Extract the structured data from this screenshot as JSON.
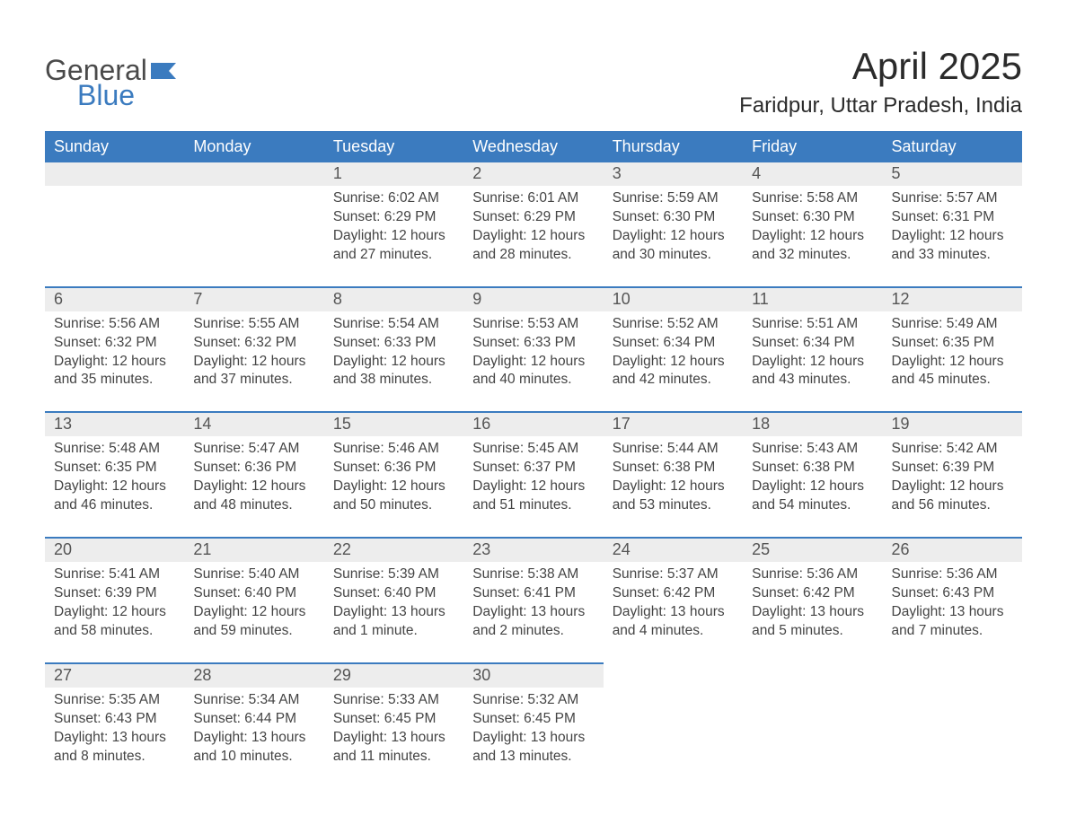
{
  "logo": {
    "word1": "General",
    "word2": "Blue"
  },
  "title": "April 2025",
  "location": "Faridpur, Uttar Pradesh, India",
  "colors": {
    "header_bg": "#3b7bbf",
    "header_text": "#ffffff",
    "daynum_bg": "#ededed",
    "daynum_text": "#555555",
    "body_text": "#444444",
    "rule": "#3b7bbf",
    "page_bg": "#ffffff",
    "logo_gray": "#4a4a4a",
    "logo_blue": "#3b7bbf"
  },
  "typography": {
    "title_fontsize": 42,
    "location_fontsize": 24,
    "header_fontsize": 18,
    "daynum_fontsize": 18,
    "body_fontsize": 15.5
  },
  "layout": {
    "columns": 7,
    "rows": 5,
    "start_weekday": "Sunday"
  },
  "weekdays": [
    "Sunday",
    "Monday",
    "Tuesday",
    "Wednesday",
    "Thursday",
    "Friday",
    "Saturday"
  ],
  "weeks": [
    [
      null,
      null,
      {
        "n": "1",
        "sunrise": "Sunrise: 6:02 AM",
        "sunset": "Sunset: 6:29 PM",
        "daylight": "Daylight: 12 hours and 27 minutes."
      },
      {
        "n": "2",
        "sunrise": "Sunrise: 6:01 AM",
        "sunset": "Sunset: 6:29 PM",
        "daylight": "Daylight: 12 hours and 28 minutes."
      },
      {
        "n": "3",
        "sunrise": "Sunrise: 5:59 AM",
        "sunset": "Sunset: 6:30 PM",
        "daylight": "Daylight: 12 hours and 30 minutes."
      },
      {
        "n": "4",
        "sunrise": "Sunrise: 5:58 AM",
        "sunset": "Sunset: 6:30 PM",
        "daylight": "Daylight: 12 hours and 32 minutes."
      },
      {
        "n": "5",
        "sunrise": "Sunrise: 5:57 AM",
        "sunset": "Sunset: 6:31 PM",
        "daylight": "Daylight: 12 hours and 33 minutes."
      }
    ],
    [
      {
        "n": "6",
        "sunrise": "Sunrise: 5:56 AM",
        "sunset": "Sunset: 6:32 PM",
        "daylight": "Daylight: 12 hours and 35 minutes."
      },
      {
        "n": "7",
        "sunrise": "Sunrise: 5:55 AM",
        "sunset": "Sunset: 6:32 PM",
        "daylight": "Daylight: 12 hours and 37 minutes."
      },
      {
        "n": "8",
        "sunrise": "Sunrise: 5:54 AM",
        "sunset": "Sunset: 6:33 PM",
        "daylight": "Daylight: 12 hours and 38 minutes."
      },
      {
        "n": "9",
        "sunrise": "Sunrise: 5:53 AM",
        "sunset": "Sunset: 6:33 PM",
        "daylight": "Daylight: 12 hours and 40 minutes."
      },
      {
        "n": "10",
        "sunrise": "Sunrise: 5:52 AM",
        "sunset": "Sunset: 6:34 PM",
        "daylight": "Daylight: 12 hours and 42 minutes."
      },
      {
        "n": "11",
        "sunrise": "Sunrise: 5:51 AM",
        "sunset": "Sunset: 6:34 PM",
        "daylight": "Daylight: 12 hours and 43 minutes."
      },
      {
        "n": "12",
        "sunrise": "Sunrise: 5:49 AM",
        "sunset": "Sunset: 6:35 PM",
        "daylight": "Daylight: 12 hours and 45 minutes."
      }
    ],
    [
      {
        "n": "13",
        "sunrise": "Sunrise: 5:48 AM",
        "sunset": "Sunset: 6:35 PM",
        "daylight": "Daylight: 12 hours and 46 minutes."
      },
      {
        "n": "14",
        "sunrise": "Sunrise: 5:47 AM",
        "sunset": "Sunset: 6:36 PM",
        "daylight": "Daylight: 12 hours and 48 minutes."
      },
      {
        "n": "15",
        "sunrise": "Sunrise: 5:46 AM",
        "sunset": "Sunset: 6:36 PM",
        "daylight": "Daylight: 12 hours and 50 minutes."
      },
      {
        "n": "16",
        "sunrise": "Sunrise: 5:45 AM",
        "sunset": "Sunset: 6:37 PM",
        "daylight": "Daylight: 12 hours and 51 minutes."
      },
      {
        "n": "17",
        "sunrise": "Sunrise: 5:44 AM",
        "sunset": "Sunset: 6:38 PM",
        "daylight": "Daylight: 12 hours and 53 minutes."
      },
      {
        "n": "18",
        "sunrise": "Sunrise: 5:43 AM",
        "sunset": "Sunset: 6:38 PM",
        "daylight": "Daylight: 12 hours and 54 minutes."
      },
      {
        "n": "19",
        "sunrise": "Sunrise: 5:42 AM",
        "sunset": "Sunset: 6:39 PM",
        "daylight": "Daylight: 12 hours and 56 minutes."
      }
    ],
    [
      {
        "n": "20",
        "sunrise": "Sunrise: 5:41 AM",
        "sunset": "Sunset: 6:39 PM",
        "daylight": "Daylight: 12 hours and 58 minutes."
      },
      {
        "n": "21",
        "sunrise": "Sunrise: 5:40 AM",
        "sunset": "Sunset: 6:40 PM",
        "daylight": "Daylight: 12 hours and 59 minutes."
      },
      {
        "n": "22",
        "sunrise": "Sunrise: 5:39 AM",
        "sunset": "Sunset: 6:40 PM",
        "daylight": "Daylight: 13 hours and 1 minute."
      },
      {
        "n": "23",
        "sunrise": "Sunrise: 5:38 AM",
        "sunset": "Sunset: 6:41 PM",
        "daylight": "Daylight: 13 hours and 2 minutes."
      },
      {
        "n": "24",
        "sunrise": "Sunrise: 5:37 AM",
        "sunset": "Sunset: 6:42 PM",
        "daylight": "Daylight: 13 hours and 4 minutes."
      },
      {
        "n": "25",
        "sunrise": "Sunrise: 5:36 AM",
        "sunset": "Sunset: 6:42 PM",
        "daylight": "Daylight: 13 hours and 5 minutes."
      },
      {
        "n": "26",
        "sunrise": "Sunrise: 5:36 AM",
        "sunset": "Sunset: 6:43 PM",
        "daylight": "Daylight: 13 hours and 7 minutes."
      }
    ],
    [
      {
        "n": "27",
        "sunrise": "Sunrise: 5:35 AM",
        "sunset": "Sunset: 6:43 PM",
        "daylight": "Daylight: 13 hours and 8 minutes."
      },
      {
        "n": "28",
        "sunrise": "Sunrise: 5:34 AM",
        "sunset": "Sunset: 6:44 PM",
        "daylight": "Daylight: 13 hours and 10 minutes."
      },
      {
        "n": "29",
        "sunrise": "Sunrise: 5:33 AM",
        "sunset": "Sunset: 6:45 PM",
        "daylight": "Daylight: 13 hours and 11 minutes."
      },
      {
        "n": "30",
        "sunrise": "Sunrise: 5:32 AM",
        "sunset": "Sunset: 6:45 PM",
        "daylight": "Daylight: 13 hours and 13 minutes."
      },
      null,
      null,
      null
    ]
  ]
}
